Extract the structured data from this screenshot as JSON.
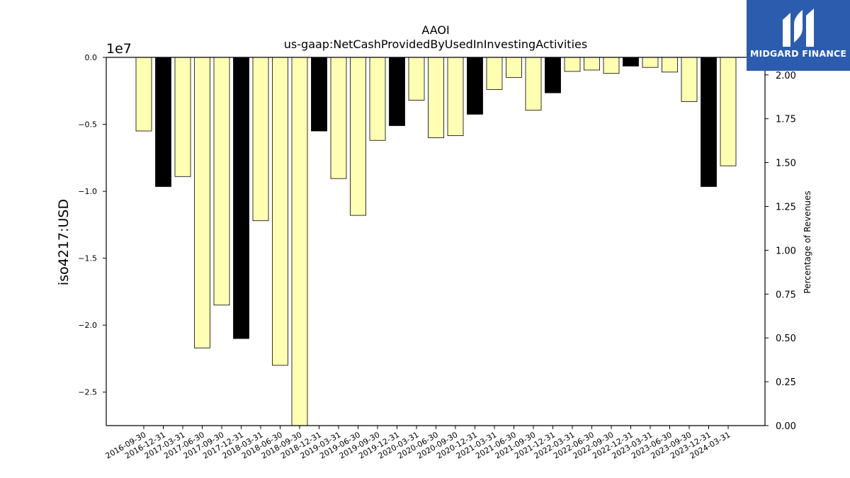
{
  "brand": {
    "name": "MIDGARD FINANCE",
    "colors": {
      "background": "#2c5cad",
      "text": "#ffffff"
    }
  },
  "chart_data": {
    "type": "bar",
    "title": "AAOI",
    "subtitle": "us-gaap:NetCashProvidedByUsedInInvestingActivities",
    "ylabel": "iso4217:USD",
    "y_multiplier_label": "1e7",
    "y2label": "Percentage of Revenues",
    "ylim": [
      -27500000,
      0
    ],
    "y2lim": [
      0,
      2.1
    ],
    "yticks": [
      "0.0",
      "−0.5",
      "−1.0",
      "−1.5",
      "−2.0",
      "−2.5"
    ],
    "yticks_values": [
      0,
      -5000000,
      -10000000,
      -15000000,
      -20000000,
      -25000000
    ],
    "y2ticks": [
      "0.00",
      "0.25",
      "0.50",
      "0.75",
      "1.00",
      "1.25",
      "1.50",
      "1.75",
      "2.00"
    ],
    "y2ticks_values": [
      0,
      0.25,
      0.5,
      0.75,
      1.0,
      1.25,
      1.5,
      1.75,
      2.0
    ],
    "grid": false,
    "colors": {
      "normal": "#ffffb3",
      "q4": "#000000",
      "edge": "#000000"
    },
    "categories": [
      "2016-09-30",
      "2016-12-31",
      "2017-03-31",
      "2017-06-30",
      "2017-09-30",
      "2017-12-31",
      "2018-03-31",
      "2018-06-30",
      "2018-09-30",
      "2018-12-31",
      "2019-03-31",
      "2019-06-30",
      "2019-09-30",
      "2019-12-31",
      "2020-03-31",
      "2020-06-30",
      "2020-09-30",
      "2020-12-31",
      "2021-03-31",
      "2021-06-30",
      "2021-09-30",
      "2021-12-31",
      "2022-03-31",
      "2022-06-30",
      "2022-09-30",
      "2022-12-31",
      "2023-03-31",
      "2023-06-30",
      "2023-09-30",
      "2023-12-31",
      "2024-03-31"
    ],
    "values": [
      -5500000,
      -9650000,
      -8900000,
      -21700000,
      -18500000,
      -21000000,
      -12200000,
      -23000000,
      -27500000,
      -5500000,
      -9050000,
      -11800000,
      -6200000,
      -5100000,
      -3200000,
      -6000000,
      -5850000,
      -4250000,
      -2400000,
      -1500000,
      -3950000,
      -2650000,
      -1050000,
      -950000,
      -1200000,
      -650000,
      -750000,
      -1100000,
      -3300000,
      -9650000,
      -8100000
    ],
    "highlight": [
      false,
      true,
      false,
      false,
      false,
      true,
      false,
      false,
      false,
      true,
      false,
      false,
      false,
      true,
      false,
      false,
      false,
      true,
      false,
      false,
      false,
      true,
      false,
      false,
      false,
      true,
      false,
      false,
      false,
      true,
      false
    ]
  }
}
